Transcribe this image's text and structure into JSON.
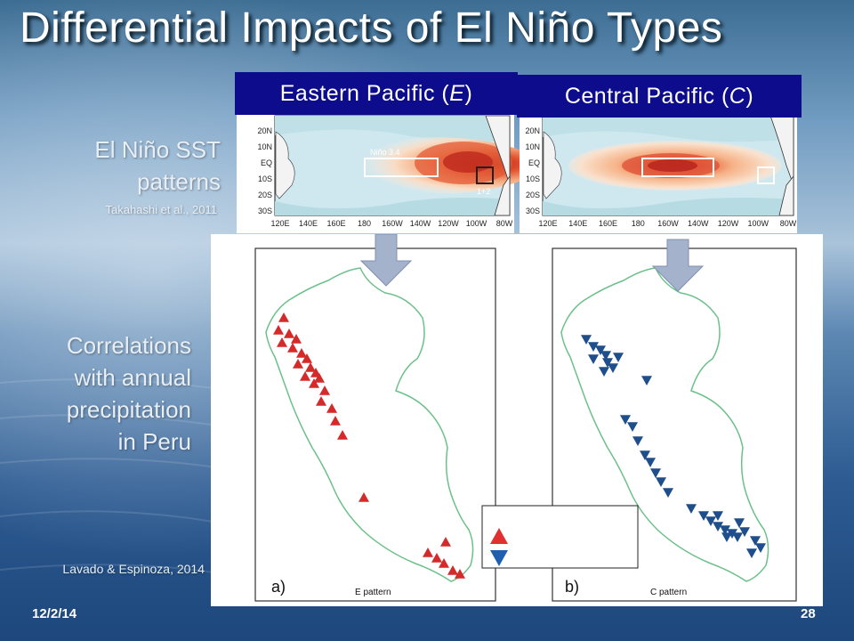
{
  "title": "Differential Impacts of El Niño Types",
  "tabs": {
    "eastern": {
      "label": "Eastern Pacific (",
      "letter": "E",
      "close": ")"
    },
    "central": {
      "label": "Central Pacific (",
      "letter": "C",
      "close": ")"
    }
  },
  "left_labels": {
    "sst_line1": "El Niño SST",
    "sst_line2": "patterns",
    "sst_citation": "Takahashi et al., 2011",
    "corr_line1": "Correlations",
    "corr_line2": "with annual",
    "corr_line3": "precipitation",
    "corr_line4": "in Peru",
    "corr_citation": "Lavado & Espinoza, 2014"
  },
  "sst_maps": {
    "lat_ticks": [
      "20N",
      "10N",
      "EQ",
      "10S",
      "20S",
      "30S"
    ],
    "lon_ticks": [
      "120E",
      "140E",
      "160E",
      "180",
      "160W",
      "140W",
      "120W",
      "100W",
      "80W"
    ],
    "region_labels": {
      "nino34": "Niño 3.4",
      "nino12": "1+2"
    }
  },
  "peru_maps": {
    "panel_a": {
      "letter": "a)",
      "pattern": "E pattern",
      "marker": "triangle-up",
      "color": "#d42a2a"
    },
    "panel_b": {
      "letter": "b)",
      "pattern": "C pattern",
      "marker": "triangle-down",
      "color": "#1f4e8c"
    }
  },
  "legend": {
    "up_color": "#e03030",
    "down_color": "#1f5fb0"
  },
  "footer": {
    "date": "12/2/14",
    "page": "28"
  }
}
